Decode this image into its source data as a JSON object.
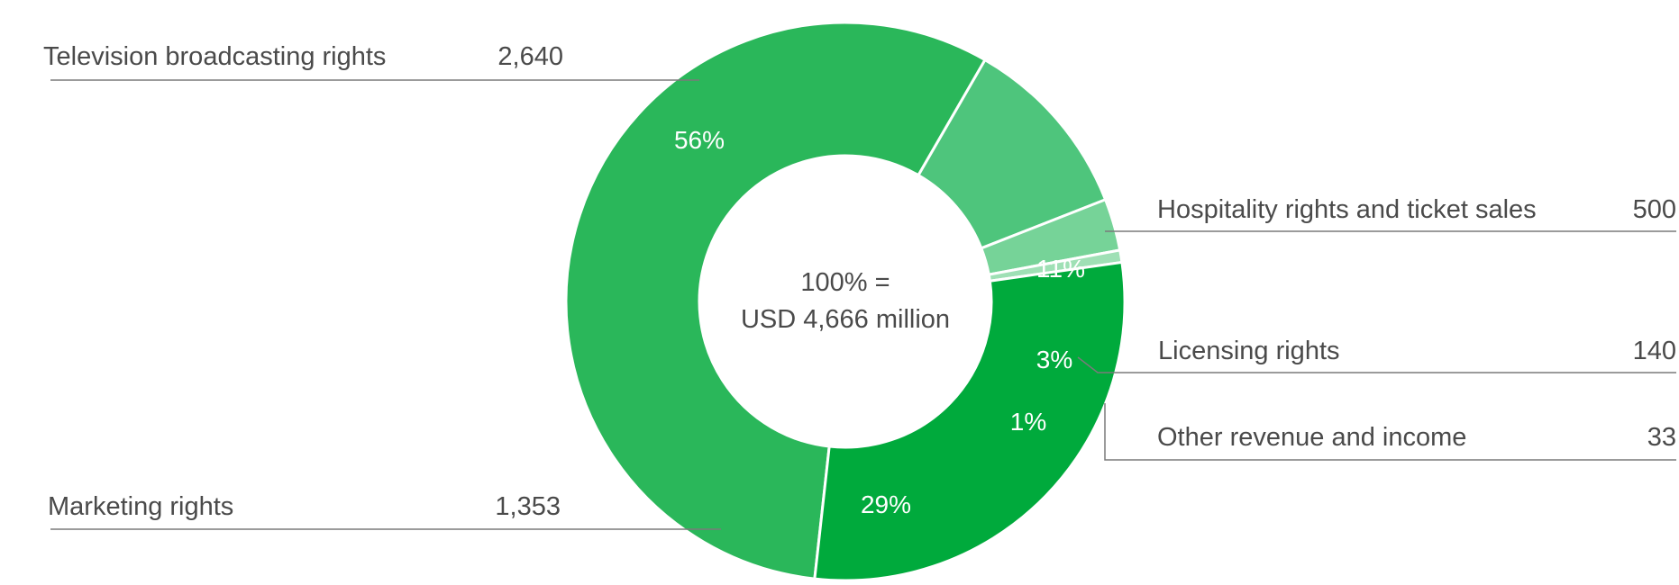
{
  "chart_data": {
    "type": "pie",
    "variant": "donut",
    "center_label": [
      "100% =",
      "USD 4,666 million"
    ],
    "segments": [
      {
        "name": "Television broadcasting rights",
        "value": 2640,
        "value_label": "2,640",
        "percent_label": "56%",
        "color": "#2ab75a"
      },
      {
        "name": "Hospitality rights and ticket sales",
        "value": 500,
        "value_label": "500",
        "percent_label": "11%",
        "color": "#4ec57c"
      },
      {
        "name": "Licensing rights",
        "value": 140,
        "value_label": "140",
        "percent_label": "3%",
        "color": "#76d398"
      },
      {
        "name": "Other revenue and income",
        "value": 33,
        "value_label": "33",
        "percent_label": "1%",
        "color": "#9fe0b5"
      },
      {
        "name": "Marketing rights",
        "value": 1353,
        "value_label": "1,353",
        "percent_label": "29%",
        "color": "#00aa3c"
      }
    ]
  }
}
